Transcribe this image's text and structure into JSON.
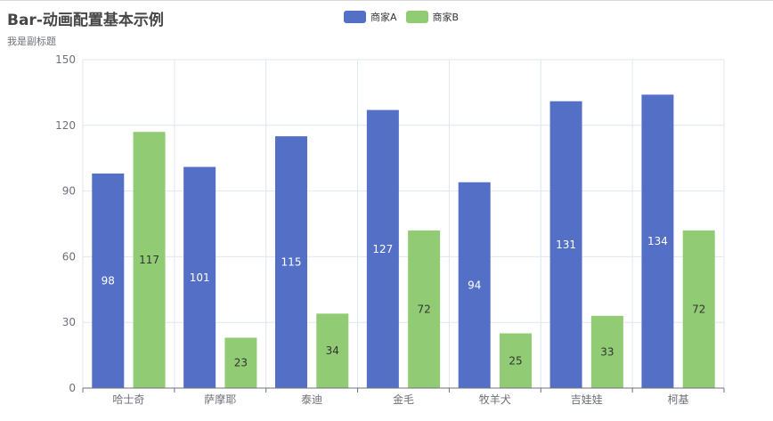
{
  "colors": {
    "series_a": "#5470c6",
    "series_b": "#91cc75",
    "axis": "#6e7079",
    "grid": "#e0e6f1"
  },
  "chart_data": {
    "type": "bar",
    "title": "Bar-动画配置基本示例",
    "subtitle": "我是副标题",
    "categories": [
      "哈士奇",
      "萨摩耶",
      "泰迪",
      "金毛",
      "牧羊犬",
      "吉娃娃",
      "柯基"
    ],
    "series": [
      {
        "name": "商家A",
        "values": [
          98,
          101,
          115,
          127,
          94,
          131,
          134
        ]
      },
      {
        "name": "商家B",
        "values": [
          117,
          23,
          34,
          72,
          25,
          33,
          72
        ]
      }
    ],
    "yticks": [
      0,
      30,
      60,
      90,
      120,
      150
    ],
    "ylim": [
      0,
      150
    ],
    "legend": "top-center",
    "grid": true
  }
}
